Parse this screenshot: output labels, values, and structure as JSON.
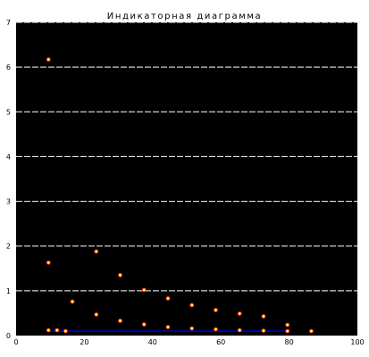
{
  "chart_data": {
    "type": "scatter",
    "title": "Индикаторная диаграмма",
    "xlabel": "",
    "ylabel": "",
    "xlim": [
      0,
      100
    ],
    "ylim": [
      0,
      7
    ],
    "x_ticks": [
      "0",
      "20",
      "40",
      "60",
      "80",
      "100"
    ],
    "y_ticks": [
      "0",
      "1",
      "2",
      "3",
      "4",
      "5",
      "6",
      "7"
    ],
    "grid": "horizontal dashed",
    "legend": "none",
    "colors": {
      "plot_background": "#000000",
      "grid": "#ffffff",
      "point_fill": "#ffff66",
      "point_edge": "#ff3300",
      "baseline": "#0000cc"
    },
    "series": [
      {
        "points": [
          {
            "x": 9.5,
            "y": 6.17
          },
          {
            "x": 9.5,
            "y": 1.63
          },
          {
            "x": 16.5,
            "y": 0.76
          },
          {
            "x": 23.5,
            "y": 1.88
          },
          {
            "x": 23.5,
            "y": 0.47
          },
          {
            "x": 30.5,
            "y": 1.35
          },
          {
            "x": 30.5,
            "y": 0.33
          },
          {
            "x": 37.5,
            "y": 1.02
          },
          {
            "x": 37.5,
            "y": 0.25
          },
          {
            "x": 44.5,
            "y": 0.83
          },
          {
            "x": 44.5,
            "y": 0.19
          },
          {
            "x": 51.5,
            "y": 0.68
          },
          {
            "x": 51.5,
            "y": 0.16
          },
          {
            "x": 58.5,
            "y": 0.57
          },
          {
            "x": 58.5,
            "y": 0.14
          },
          {
            "x": 65.5,
            "y": 0.49
          },
          {
            "x": 65.5,
            "y": 0.12
          },
          {
            "x": 72.5,
            "y": 0.43
          },
          {
            "x": 72.5,
            "y": 0.11
          },
          {
            "x": 79.5,
            "y": 0.24
          },
          {
            "x": 79.5,
            "y": 0.1
          },
          {
            "x": 86.5,
            "y": 0.1
          },
          {
            "x": 9.5,
            "y": 0.12
          },
          {
            "x": 12.0,
            "y": 0.12
          },
          {
            "x": 14.5,
            "y": 0.1
          }
        ]
      }
    ],
    "baseline_segment": {
      "x": [
        10,
        80
      ],
      "y": 0.1
    }
  }
}
